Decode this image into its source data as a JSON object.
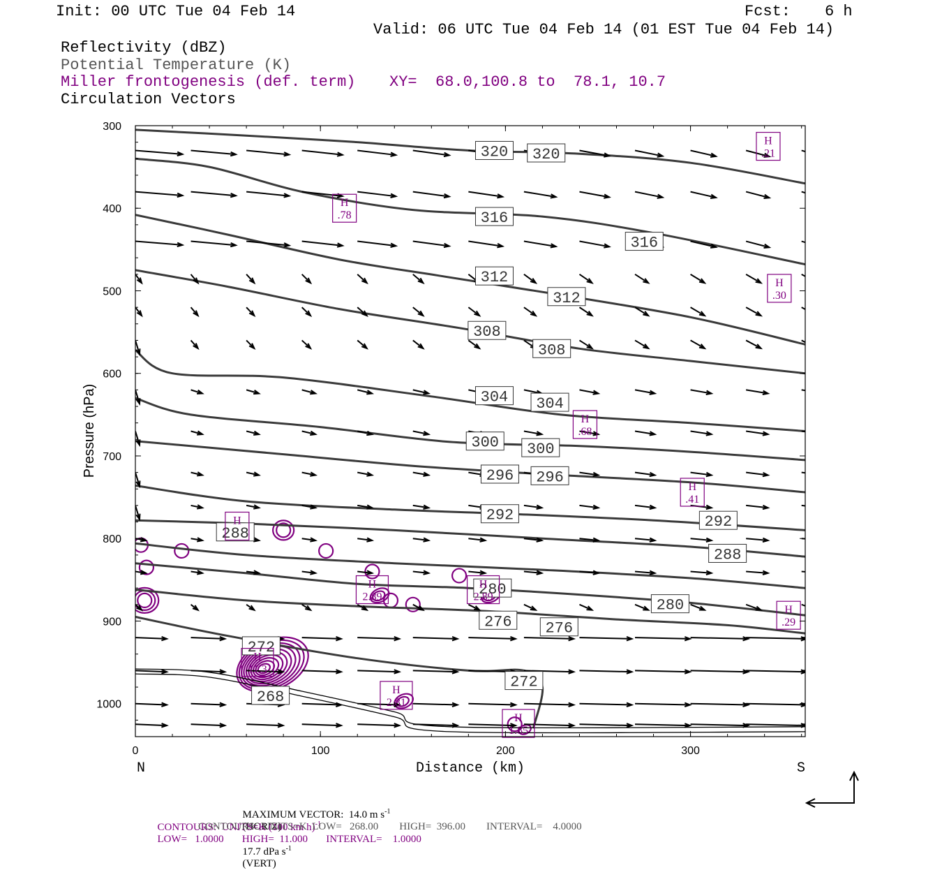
{
  "header": {
    "init": "Init: 00 UTC Tue 04 Feb 14",
    "fcst_label": "Fcst:",
    "fcst_value": "6 h",
    "valid": "Valid: 06 UTC Tue 04 Feb 14 (01 EST Tue 04 Feb 14)"
  },
  "legend": {
    "field1": "Reflectivity (dBZ)",
    "field2": "Potential Temperature (K)",
    "field3": "Miller frontogenesis (def. term)",
    "xy": "XY=  68.0,100.8 to  78.1, 10.7",
    "field4": "Circulation Vectors"
  },
  "footer": {
    "max_vector_prefix": "MAXIMUM VECTOR:  14.0 m s",
    "max_vector_h": "(HORIZ)",
    "max_vector_v_prefix": "17.7 dPa s",
    "max_vector_v": "(VERT)",
    "contours1_prefix": "CONTOURS:  UNITS=K (100 km h)",
    "contours1_suffix": "LOW=   1.0000       HIGH=  11.000       INTERVAL=    1.0000",
    "contours2": "CONTOURS:  UNITS=K  LOW=   268.00        HIGH=  396.00        INTERVAL=    4.0000"
  },
  "colors": {
    "theta": "#3a3a3a",
    "frontogenesis": "#800080",
    "vectors": "#000000",
    "frame": "#000000"
  },
  "chart_data": {
    "type": "cross-section",
    "xlabel": "Distance (km)",
    "ylabel": "Pressure (hPa)",
    "x_ticks": [
      0,
      100,
      200,
      300
    ],
    "y_ticks": [
      300,
      400,
      500,
      600,
      700,
      800,
      900,
      1000
    ],
    "xlim": [
      0,
      362
    ],
    "ylim": [
      300,
      1040
    ],
    "left_end_label": "N",
    "right_end_label": "S",
    "theta_isentropes": [
      {
        "value": 320,
        "points": [
          [
            0,
            305
          ],
          [
            60,
            312
          ],
          [
            120,
            320
          ],
          [
            180,
            330
          ],
          [
            240,
            334
          ],
          [
            300,
            345
          ],
          [
            362,
            370
          ]
        ],
        "labels": [
          {
            "text": "320",
            "x": 194,
            "p": 330
          },
          {
            "text": "320",
            "x": 222,
            "p": 333
          }
        ]
      },
      {
        "value": 316,
        "points": [
          [
            0,
            340
          ],
          [
            40,
            350
          ],
          [
            90,
            380
          ],
          [
            150,
            402
          ],
          [
            220,
            410
          ],
          [
            280,
            430
          ],
          [
            362,
            468
          ]
        ],
        "labels": [
          {
            "text": "316",
            "x": 194,
            "p": 410
          },
          {
            "text": "316",
            "x": 275,
            "p": 440
          }
        ]
      },
      {
        "value": 312,
        "points": [
          [
            0,
            408
          ],
          [
            50,
            432
          ],
          [
            110,
            462
          ],
          [
            165,
            482
          ],
          [
            230,
            505
          ],
          [
            300,
            532
          ],
          [
            362,
            565
          ]
        ],
        "labels": [
          {
            "text": "312",
            "x": 194,
            "p": 482
          },
          {
            "text": "312",
            "x": 233,
            "p": 507
          }
        ]
      },
      {
        "value": 308,
        "points": [
          [
            0,
            475
          ],
          [
            50,
            495
          ],
          [
            110,
            522
          ],
          [
            175,
            545
          ],
          [
            240,
            570
          ],
          [
            300,
            585
          ],
          [
            362,
            600
          ]
        ],
        "labels": [
          {
            "text": "308",
            "x": 190,
            "p": 548
          },
          {
            "text": "308",
            "x": 225,
            "p": 570
          }
        ]
      },
      {
        "value": 304,
        "points": [
          [
            0,
            572
          ],
          [
            20,
            600
          ],
          [
            80,
            605
          ],
          [
            160,
            628
          ],
          [
            230,
            650
          ],
          [
            300,
            660
          ],
          [
            362,
            670
          ]
        ],
        "labels": [
          {
            "text": "304",
            "x": 194,
            "p": 627
          },
          {
            "text": "304",
            "x": 224,
            "p": 635
          }
        ]
      },
      {
        "value": 300,
        "points": [
          [
            0,
            630
          ],
          [
            30,
            650
          ],
          [
            100,
            665
          ],
          [
            170,
            683
          ],
          [
            240,
            688
          ],
          [
            300,
            695
          ],
          [
            362,
            705
          ]
        ],
        "labels": [
          {
            "text": "300",
            "x": 189,
            "p": 682
          },
          {
            "text": "300",
            "x": 219,
            "p": 690
          }
        ]
      },
      {
        "value": 296,
        "points": [
          [
            0,
            682
          ],
          [
            40,
            690
          ],
          [
            80,
            698
          ],
          [
            150,
            712
          ],
          [
            220,
            722
          ],
          [
            300,
            732
          ],
          [
            362,
            744
          ]
        ],
        "labels": [
          {
            "text": "296",
            "x": 197,
            "p": 722
          },
          {
            "text": "296",
            "x": 224,
            "p": 724
          }
        ]
      },
      {
        "value": 292,
        "points": [
          [
            0,
            736
          ],
          [
            60,
            755
          ],
          [
            140,
            765
          ],
          [
            200,
            770
          ],
          [
            280,
            778
          ],
          [
            362,
            790
          ]
        ],
        "labels": [
          {
            "text": "292",
            "x": 197,
            "p": 770
          },
          {
            "text": "292",
            "x": 315,
            "p": 778
          }
        ]
      },
      {
        "value": 288,
        "points": [
          [
            0,
            778
          ],
          [
            60,
            782
          ],
          [
            140,
            790
          ],
          [
            220,
            800
          ],
          [
            300,
            810
          ],
          [
            362,
            822
          ]
        ],
        "labels": [
          {
            "text": "288",
            "x": 54,
            "p": 792
          },
          {
            "text": "288",
            "x": 320,
            "p": 818
          }
        ]
      },
      {
        "value": 284,
        "points": [
          [
            0,
            806
          ],
          [
            60,
            820
          ],
          [
            140,
            830
          ],
          [
            220,
            838
          ],
          [
            300,
            848
          ],
          [
            362,
            860
          ]
        ],
        "labels": []
      },
      {
        "value": 280,
        "points": [
          [
            0,
            830
          ],
          [
            60,
            842
          ],
          [
            120,
            855
          ],
          [
            180,
            860
          ],
          [
            240,
            868
          ],
          [
            300,
            878
          ],
          [
            362,
            893
          ]
        ],
        "labels": [
          {
            "text": "280",
            "x": 193,
            "p": 860
          },
          {
            "text": "280",
            "x": 289,
            "p": 879
          }
        ]
      },
      {
        "value": 276,
        "points": [
          [
            0,
            862
          ],
          [
            60,
            875
          ],
          [
            120,
            882
          ],
          [
            190,
            888
          ],
          [
            260,
            898
          ],
          [
            320,
            905
          ],
          [
            362,
            915
          ]
        ],
        "labels": [
          {
            "text": "276",
            "x": 196,
            "p": 899
          },
          {
            "text": "276",
            "x": 229,
            "p": 907
          }
        ]
      },
      {
        "value": 272,
        "points": [
          [
            0,
            895
          ],
          [
            50,
            918
          ],
          [
            120,
            945
          ],
          [
            180,
            960
          ],
          [
            210,
            960
          ],
          [
            220,
            980
          ],
          [
            215,
            1030
          ]
        ],
        "labels": [
          {
            "text": "272",
            "x": 68,
            "p": 930
          },
          {
            "text": "272",
            "x": 210,
            "p": 972
          }
        ]
      },
      {
        "value": 268,
        "points": [
          [
            0,
            958
          ],
          [
            40,
            962
          ],
          [
            90,
            985
          ],
          [
            140,
            1010
          ],
          [
            170,
            1028
          ],
          [
            362,
            1028
          ]
        ],
        "labels": [
          {
            "text": "268",
            "x": 73,
            "p": 990
          }
        ]
      }
    ],
    "frontogenesis_maxima": [
      {
        "label": "H",
        "value": ".21",
        "x": 342,
        "p": 325
      },
      {
        "label": "H",
        "value": ".78",
        "x": 113,
        "p": 400
      },
      {
        "label": "H",
        "value": ".30",
        "x": 348,
        "p": 497
      },
      {
        "label": "H",
        "value": ".68",
        "x": 243,
        "p": 662
      },
      {
        "label": "H",
        "value": ".41",
        "x": 301,
        "p": 744
      },
      {
        "label": "H",
        "value": "2.89",
        "x": 128,
        "p": 862
      },
      {
        "label": "H",
        "value": "2.89",
        "x": 188,
        "p": 862
      },
      {
        "label": "H",
        "value": ".29",
        "x": 353,
        "p": 893
      },
      {
        "label": "H",
        "value": "11.3",
        "x": 66,
        "p": 950
      },
      {
        "label": "H",
        "value": "2.81",
        "x": 141,
        "p": 990
      },
      {
        "label": "H",
        "value": "1.85",
        "x": 207,
        "p": 1024
      },
      {
        "label": "H",
        "value": "",
        "x": 55,
        "p": 785
      }
    ],
    "vector_field": {
      "x_positions": [
        0,
        30,
        60,
        90,
        120,
        150,
        180,
        210,
        240,
        270,
        300,
        330,
        360
      ],
      "pressure_levels": [
        330,
        380,
        440,
        480,
        520,
        560,
        620,
        670,
        720,
        760,
        800,
        840,
        880,
        920,
        960,
        1000,
        1025
      ],
      "reference_vector": {
        "horizontal_ms": 14.0,
        "vertical_dPa_s": 17.7
      }
    }
  }
}
